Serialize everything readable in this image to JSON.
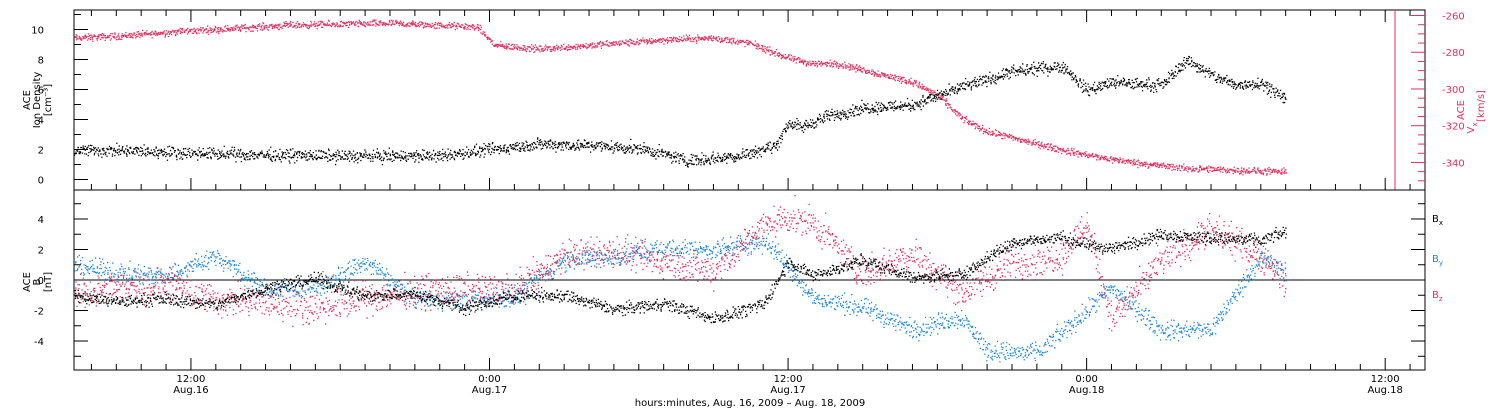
{
  "figure": {
    "x_axis_title": "hours:minutes, Aug. 16, 2009 – Aug. 18, 2009",
    "x_ticks": [
      {
        "time": "12:00",
        "date": "Aug.16",
        "hours": 12
      },
      {
        "time": "0:00",
        "date": "Aug.17",
        "hours": 24
      },
      {
        "time": "12:00",
        "date": "Aug.17",
        "hours": 36
      },
      {
        "time": "0:00",
        "date": "Aug.18",
        "hours": 48
      },
      {
        "time": "12:00",
        "date": "Aug.18",
        "hours": 60
      }
    ],
    "x_range_hours": [
      7.3,
      61.6
    ],
    "data_end_hours": 56.1
  },
  "colors": {
    "black": "#000000",
    "pink": "#e0325e",
    "blue": "#1f88d8"
  },
  "chart_data": [
    {
      "panel": "top",
      "type": "scatter",
      "ylabel_left": [
        "ACE",
        "Ion Density",
        "[cm⁻³]"
      ],
      "ylabel_right": [
        "ACE",
        "V",
        "[km/s]"
      ],
      "ylabel_right_sub": "x",
      "ylim_left": [
        -0.7,
        11.3
      ],
      "yticks_left": [
        0,
        2,
        4,
        6,
        8,
        10
      ],
      "ylim_right": [
        -355,
        -257
      ],
      "yticks_right": [
        -260,
        -280,
        -300,
        -320,
        -340
      ],
      "series": [
        {
          "axis": "left",
          "color_key": "black",
          "x": [
            7.3,
            10,
            14,
            18,
            22,
            24,
            26,
            28,
            30,
            32,
            34,
            35.5,
            36,
            36.5,
            37.5,
            39,
            41,
            43,
            45,
            47,
            48,
            49,
            51,
            52,
            53,
            54,
            55,
            56
          ],
          "y": [
            2.0,
            1.9,
            1.7,
            1.6,
            1.6,
            2.0,
            2.4,
            2.3,
            2.1,
            1.3,
            1.6,
            2.3,
            3.8,
            3.5,
            4.2,
            4.8,
            5.0,
            6.2,
            7.2,
            7.6,
            6.0,
            6.5,
            6.3,
            8.0,
            7.0,
            6.3,
            6.5,
            5.4
          ],
          "noise": 0.35
        },
        {
          "axis": "right",
          "color_key": "pink",
          "x": [
            7.3,
            9,
            12,
            16,
            20,
            23.5,
            24.2,
            26,
            28,
            31,
            33,
            34.5,
            36,
            37,
            38,
            39.5,
            41,
            42,
            43,
            44,
            45.5,
            47,
            48.5,
            50,
            52,
            54,
            56
          ],
          "y": [
            -272,
            -271,
            -268,
            -265,
            -264,
            -266,
            -276,
            -278,
            -276,
            -273,
            -272,
            -275,
            -283,
            -286,
            -286,
            -291,
            -296,
            -303,
            -316,
            -323,
            -328,
            -333,
            -337,
            -340,
            -343,
            -344,
            -345
          ],
          "noise": 1.6
        }
      ]
    },
    {
      "panel": "bottom",
      "type": "scatter",
      "ylabel_left": [
        "ACE",
        "B",
        "[nT]"
      ],
      "ylim": [
        -5.9,
        5.9
      ],
      "yticks": [
        -4,
        -2,
        0,
        2,
        4
      ],
      "zero_line": true,
      "series": [
        {
          "name": "B",
          "subscript": "x",
          "color_key": "black",
          "x": [
            7.3,
            9,
            11,
            13,
            15,
            17,
            19,
            21,
            23,
            25,
            27,
            29,
            31,
            33,
            35,
            36,
            37,
            39,
            41,
            43,
            45,
            47,
            48,
            49,
            51,
            53,
            55,
            56
          ],
          "y": [
            -1.0,
            -1.4,
            -1.2,
            -1.6,
            -0.5,
            0.1,
            -1.0,
            -0.9,
            -1.8,
            -1.0,
            -1.0,
            -1.9,
            -1.5,
            -2.5,
            -1.6,
            1.2,
            0.3,
            1.3,
            0.2,
            0.4,
            2.5,
            2.8,
            2.3,
            2.1,
            3.0,
            2.8,
            2.6,
            3.2
          ],
          "noise": 0.35
        },
        {
          "name": "B",
          "subscript": "y",
          "color_key": "blue",
          "x": [
            7.3,
            9,
            11,
            13,
            15,
            17,
            19,
            21,
            23,
            25,
            27,
            29,
            31,
            33,
            35,
            36,
            37,
            39,
            41,
            43,
            44,
            46,
            48,
            49,
            51,
            53,
            55,
            56
          ],
          "y": [
            1.0,
            0.5,
            0.3,
            1.6,
            -0.6,
            -0.5,
            1.2,
            -1.2,
            -1.3,
            -1.1,
            1.4,
            1.5,
            2.1,
            2.0,
            2.6,
            1.0,
            -1.2,
            -1.8,
            -3.2,
            -2.4,
            -4.6,
            -4.8,
            -2.0,
            -0.5,
            -3.3,
            -3.2,
            1.5,
            0.5
          ],
          "noise": 0.55
        },
        {
          "name": "B",
          "subscript": "z",
          "color_key": "pink",
          "x": [
            7.3,
            9,
            11,
            13,
            15,
            17,
            19,
            21,
            23,
            25,
            27,
            29,
            31,
            33,
            35,
            36,
            37,
            39,
            41,
            43,
            45,
            47,
            48,
            49,
            51,
            53,
            55,
            56
          ],
          "y": [
            -0.9,
            -0.5,
            -0.2,
            -1.3,
            -1.5,
            -1.8,
            -1.2,
            -0.7,
            -0.6,
            -0.6,
            1.6,
            1.9,
            1.2,
            0.6,
            3.6,
            4.2,
            3.7,
            0.5,
            1.8,
            -0.8,
            1.1,
            1.6,
            3.8,
            -2.6,
            1.3,
            3.3,
            1.6,
            0.0
          ],
          "noise": 0.9
        }
      ]
    }
  ]
}
